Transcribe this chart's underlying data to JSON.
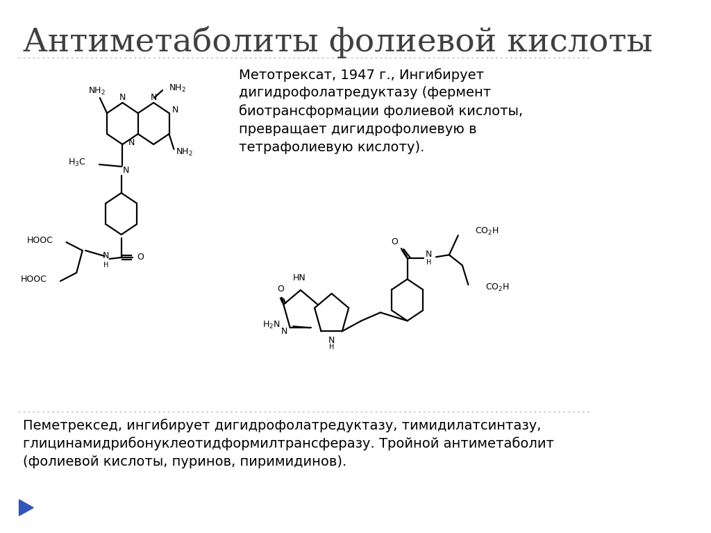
{
  "title": "Антиметаболиты фолиевой кислоты",
  "bg_color": "#ffffff",
  "title_color": "#404040",
  "title_fontsize": 34,
  "text_color": "#000000",
  "methotrexate_text": "Метотрексат, 1947 г., Ингибирует\nдигидрофолатредуктазу (фермент\nбиотрансформации фолиевой кислоты,\nпревращает дигидрофолиевую в\nтетрафолиевую кислоту).",
  "pemetrexed_text": "Пеметрексед, ингибирует дигидрофолатредуктазу, тимидилатсинтазу,\nглицинамидрибонуклеотидформилтрансферазу. Тройной антиметаболит\n(фолиевой кислоты, пуринов, пиримидинов).",
  "text_fontsize": 14,
  "separator_color": "#bbbbbb",
  "arrow_color": "#3355bb",
  "struct_color": "#000000",
  "struct_lw": 1.6,
  "struct_fs": 9
}
